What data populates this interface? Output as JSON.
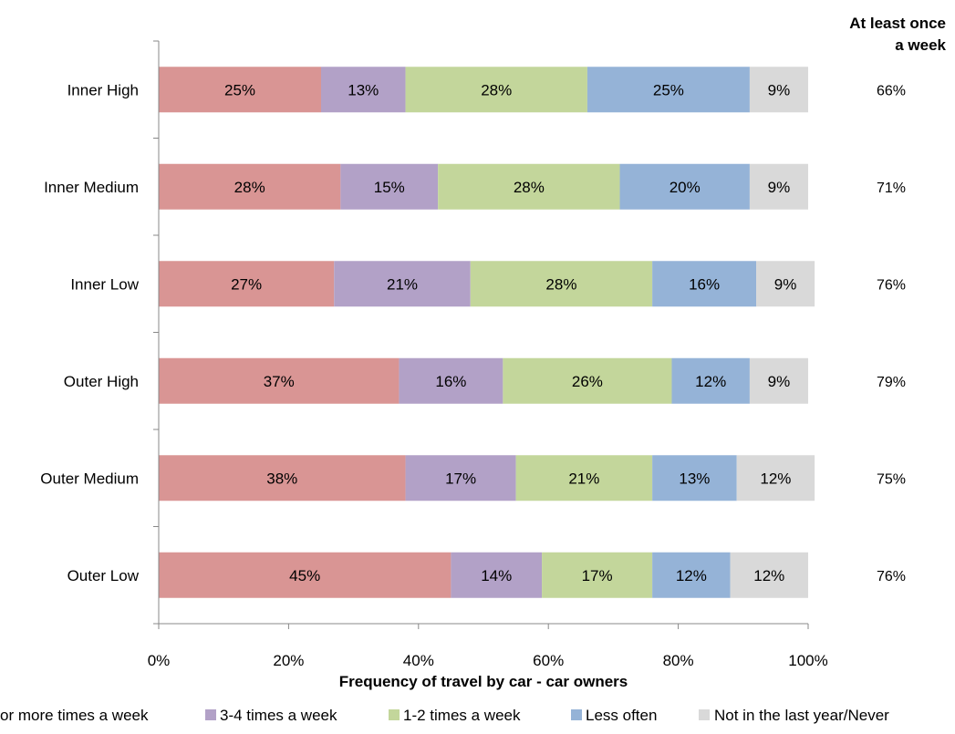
{
  "chart_data": {
    "type": "bar",
    "orientation": "horizontal",
    "stacked": true,
    "categories": [
      "Inner High",
      "Inner Medium",
      "Inner Low",
      "Outer High",
      "Outer Medium",
      "Outer Low"
    ],
    "series": [
      {
        "name": "or more times a week",
        "color": "#D99594",
        "values": [
          25,
          28,
          27,
          37,
          38,
          45
        ]
      },
      {
        "name": "3-4 times a week",
        "color": "#B2A1C7",
        "values": [
          13,
          15,
          21,
          16,
          17,
          14
        ]
      },
      {
        "name": "1-2 times a week",
        "color": "#C3D69B",
        "values": [
          28,
          28,
          28,
          26,
          21,
          17
        ]
      },
      {
        "name": "Less often",
        "color": "#95B3D7",
        "values": [
          25,
          20,
          16,
          12,
          13,
          12
        ]
      },
      {
        "name": "Not in the last year/Never",
        "color": "#D9D9D9",
        "values": [
          9,
          9,
          9,
          9,
          12,
          12
        ]
      }
    ],
    "value_labels": [
      [
        "25%",
        "13%",
        "28%",
        "25%",
        "9%"
      ],
      [
        "28%",
        "15%",
        "28%",
        "20%",
        "9%"
      ],
      [
        "27%",
        "21%",
        "28%",
        "16%",
        "9%"
      ],
      [
        "37%",
        "16%",
        "26%",
        "12%",
        "9%"
      ],
      [
        "38%",
        "17%",
        "21%",
        "13%",
        "12%"
      ],
      [
        "45%",
        "14%",
        "17%",
        "12%",
        "12%"
      ]
    ],
    "xlabel": "Frequency of travel by car - car owners",
    "xlim": [
      0,
      100
    ],
    "x_ticks": [
      "0%",
      "20%",
      "40%",
      "60%",
      "80%",
      "100%"
    ],
    "grid": false,
    "legend_position": "bottom",
    "side_column": {
      "title_line1": "At least once",
      "title_line2": "a week",
      "values": [
        "66%",
        "71%",
        "76%",
        "79%",
        "75%",
        "76%"
      ]
    }
  }
}
